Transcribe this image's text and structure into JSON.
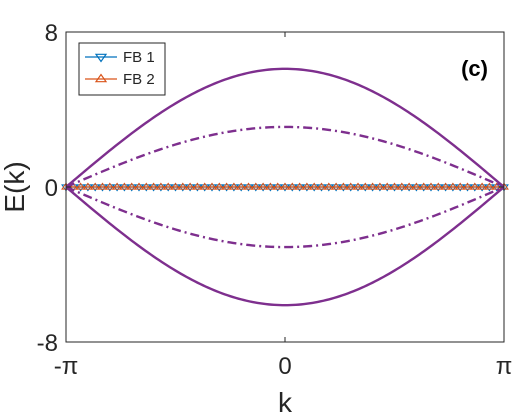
{
  "chart_data": {
    "type": "line",
    "panel_label": "(c)",
    "xlabel": "k",
    "ylabel": "E(k)",
    "xlim": [
      -3.14159,
      3.14159
    ],
    "ylim": [
      -8,
      8
    ],
    "x_ticks": [
      {
        "value": -3.14159,
        "label": "-π"
      },
      {
        "value": 0,
        "label": "0"
      },
      {
        "value": 3.14159,
        "label": "π"
      }
    ],
    "y_ticks": [
      {
        "value": -8,
        "label": "-8"
      },
      {
        "value": 0,
        "label": "0"
      },
      {
        "value": 8,
        "label": "8"
      }
    ],
    "grid": false,
    "legend_position": "top-left",
    "series": [
      {
        "name": "FB 1",
        "style": "marker-line",
        "marker": "triangle-down",
        "color": "#0072BD",
        "x": [
          -3.14159,
          3.14159
        ],
        "y": [
          0,
          0
        ]
      },
      {
        "name": "FB 2",
        "style": "marker-line",
        "marker": "triangle-up",
        "color": "#D95319",
        "x": [
          -3.14159,
          3.14159
        ],
        "y": [
          0,
          0
        ]
      },
      {
        "style": "solid",
        "color": "#7E2F8E",
        "x": [
          -3.14159,
          -1.5708,
          0,
          1.5708,
          3.14159
        ],
        "y": [
          0,
          4.31,
          6.1,
          4.31,
          0
        ]
      },
      {
        "style": "solid",
        "color": "#7E2F8E",
        "x": [
          -3.14159,
          -1.5708,
          0,
          1.5708,
          3.14159
        ],
        "y": [
          0,
          -4.31,
          -6.1,
          -4.31,
          0
        ]
      },
      {
        "style": "dashdot",
        "color": "#7E2F8E",
        "x": [
          -3.14159,
          -1.5708,
          0,
          1.5708,
          3.14159
        ],
        "y": [
          0,
          2.19,
          3.1,
          2.19,
          0
        ]
      },
      {
        "style": "dashdot",
        "color": "#7E2F8E",
        "x": [
          -3.14159,
          -1.5708,
          0,
          1.5708,
          3.14159
        ],
        "y": [
          0,
          -2.19,
          -3.1,
          -2.19,
          0
        ]
      }
    ]
  }
}
